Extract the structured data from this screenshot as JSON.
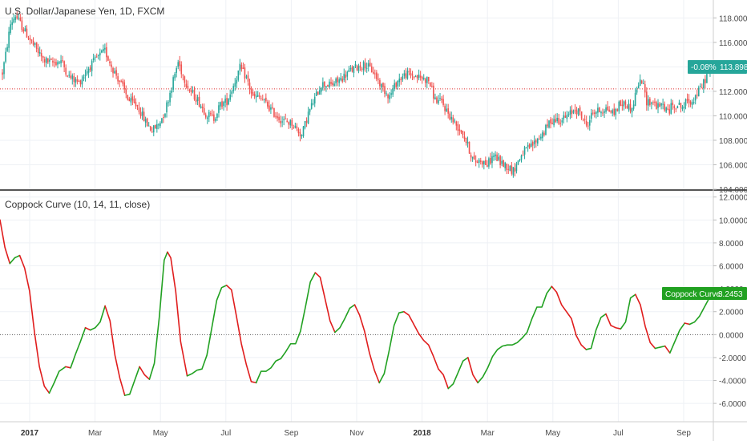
{
  "chart_data": [
    {
      "type": "candlestick",
      "title": "U.S. Dollar/Japanese Yen, 1D, FXCM",
      "yticks": [
        "104.000",
        "106.000",
        "108.000",
        "110.000",
        "112.000",
        "114.000",
        "116.000",
        "118.000"
      ],
      "ylim": [
        104,
        119.2
      ],
      "reference_line": 112.2,
      "last": {
        "change": "-0.08%",
        "price": "113.898"
      },
      "trend_anchors": [
        [
          0,
          113.5
        ],
        [
          2,
          115
        ],
        [
          5,
          117.5
        ],
        [
          8,
          118.2
        ],
        [
          12,
          117.3
        ],
        [
          18,
          116
        ],
        [
          25,
          114.6
        ],
        [
          30,
          114.3
        ],
        [
          36,
          114.5
        ],
        [
          41,
          113.2
        ],
        [
          47,
          112.7
        ],
        [
          53,
          113.9
        ],
        [
          58,
          114.7
        ],
        [
          63,
          115.3
        ],
        [
          68,
          113.8
        ],
        [
          73,
          112.6
        ],
        [
          78,
          111.2
        ],
        [
          83,
          110.8
        ],
        [
          88,
          109.5
        ],
        [
          92,
          108.8
        ],
        [
          96,
          109.3
        ],
        [
          100,
          110.4
        ],
        [
          104,
          112.4
        ],
        [
          108,
          114.4
        ],
        [
          111,
          113.3
        ],
        [
          115,
          112.1
        ],
        [
          120,
          111.3
        ],
        [
          125,
          110.2
        ],
        [
          130,
          109.8
        ],
        [
          134,
          110.9
        ],
        [
          138,
          111.2
        ],
        [
          142,
          112.5
        ],
        [
          146,
          113.9
        ],
        [
          150,
          113.1
        ],
        [
          154,
          111.5
        ],
        [
          158,
          111.5
        ],
        [
          162,
          111.0
        ],
        [
          167,
          110.2
        ],
        [
          172,
          109.6
        ],
        [
          178,
          109.4
        ],
        [
          184,
          108.4
        ],
        [
          188,
          110.2
        ],
        [
          192,
          111.4
        ],
        [
          196,
          112.6
        ],
        [
          202,
          112.5
        ],
        [
          208,
          113.0
        ],
        [
          213,
          113.6
        ],
        [
          218,
          114.0
        ],
        [
          223,
          114.2
        ],
        [
          228,
          113.6
        ],
        [
          233,
          112.4
        ],
        [
          238,
          111.6
        ],
        [
          243,
          112.9
        ],
        [
          248,
          113.4
        ],
        [
          252,
          113.3
        ],
        [
          257,
          113.1
        ],
        [
          262,
          112.9
        ],
        [
          266,
          111.3
        ],
        [
          270,
          111.1
        ],
        [
          274,
          110.2
        ],
        [
          278,
          109.4
        ],
        [
          283,
          108.6
        ],
        [
          287,
          107.2
        ],
        [
          290,
          106.2
        ],
        [
          294,
          106.4
        ],
        [
          298,
          106.0
        ],
        [
          302,
          106.8
        ],
        [
          306,
          106.2
        ],
        [
          310,
          105.9
        ],
        [
          314,
          105.5
        ],
        [
          317,
          106.3
        ],
        [
          320,
          107.0
        ],
        [
          325,
          107.5
        ],
        [
          329,
          108.1
        ],
        [
          333,
          108.7
        ],
        [
          337,
          109.6
        ],
        [
          340,
          109.7
        ],
        [
          344,
          109.7
        ],
        [
          348,
          110.0
        ],
        [
          352,
          110.6
        ],
        [
          355,
          110.2
        ],
        [
          359,
          109.2
        ],
        [
          363,
          110.3
        ],
        [
          367,
          110.4
        ],
        [
          371,
          110.6
        ],
        [
          376,
          110.2
        ],
        [
          379,
          110.9
        ],
        [
          383,
          111.0
        ],
        [
          387,
          110.5
        ],
        [
          390,
          112.3
        ],
        [
          393,
          112.9
        ],
        [
          396,
          111.2
        ],
        [
          400,
          111.1
        ],
        [
          403,
          110.7
        ],
        [
          406,
          110.9
        ],
        [
          409,
          110.3
        ],
        [
          412,
          110.9
        ],
        [
          415,
          110.9
        ],
        [
          418,
          110.7
        ],
        [
          421,
          111.2
        ],
        [
          424,
          111.2
        ],
        [
          427,
          111.8
        ],
        [
          430,
          112.4
        ],
        [
          433,
          113.3
        ],
        [
          436,
          113.9
        ]
      ]
    },
    {
      "type": "line",
      "title": "Coppock Curve (10, 14, 11, close)",
      "yticks": [
        "-6.0000",
        "-4.0000",
        "-2.0000",
        "0.0000",
        "2.0000",
        "4.0000",
        "6.0000",
        "8.0000",
        "10.0000",
        "12.0000"
      ],
      "ylim": [
        -7.6,
        12.4
      ],
      "last": {
        "label": "Coppock Curve",
        "value": "3.2453"
      },
      "colors": {
        "rising": "#21a121",
        "falling": "#e01d1d"
      },
      "series": [
        {
          "anchors": [
            [
              0,
              10
            ],
            [
              3,
              7.6
            ],
            [
              6,
              6.2
            ],
            [
              9,
              6.7
            ],
            [
              12,
              6.9
            ],
            [
              15,
              5.8
            ],
            [
              18,
              3.8
            ],
            [
              21,
              0.2
            ],
            [
              24,
              -2.8
            ],
            [
              27,
              -4.5
            ],
            [
              30,
              -5.1
            ],
            [
              33,
              -4.2
            ],
            [
              36,
              -3.2
            ],
            [
              40,
              -2.8
            ],
            [
              43,
              -2.9
            ],
            [
              46,
              -1.7
            ],
            [
              49,
              -0.6
            ],
            [
              52,
              0.6
            ],
            [
              55,
              0.4
            ],
            [
              58,
              0.6
            ],
            [
              61,
              1.1
            ],
            [
              64,
              2.5
            ],
            [
              67,
              1.2
            ],
            [
              70,
              -1.8
            ],
            [
              73,
              -3.8
            ],
            [
              76,
              -5.3
            ],
            [
              79,
              -5.2
            ],
            [
              82,
              -4.0
            ],
            [
              85,
              -2.8
            ],
            [
              88,
              -3.5
            ],
            [
              91,
              -3.9
            ],
            [
              94,
              -2.5
            ],
            [
              97,
              1.5
            ],
            [
              100,
              6.5
            ],
            [
              102,
              7.2
            ],
            [
              104,
              6.7
            ],
            [
              107,
              3.8
            ],
            [
              110,
              -0.6
            ],
            [
              114,
              -3.6
            ],
            [
              117,
              -3.4
            ],
            [
              120,
              -3.1
            ],
            [
              123,
              -3.0
            ],
            [
              126,
              -1.8
            ],
            [
              129,
              0.6
            ],
            [
              132,
              3.0
            ],
            [
              135,
              4.1
            ],
            [
              138,
              4.3
            ],
            [
              141,
              3.9
            ],
            [
              144,
              1.6
            ],
            [
              147,
              -0.8
            ],
            [
              150,
              -2.6
            ],
            [
              153,
              -4.1
            ],
            [
              156,
              -4.2
            ],
            [
              159,
              -3.2
            ],
            [
              162,
              -3.2
            ],
            [
              165,
              -2.9
            ],
            [
              168,
              -2.3
            ],
            [
              171,
              -2.1
            ],
            [
              174,
              -1.5
            ],
            [
              177,
              -0.8
            ],
            [
              180,
              -0.8
            ],
            [
              183,
              0.3
            ],
            [
              186,
              2.4
            ],
            [
              189,
              4.6
            ],
            [
              192,
              5.4
            ],
            [
              195,
              5.0
            ],
            [
              198,
              3.1
            ],
            [
              201,
              1.2
            ],
            [
              204,
              0.2
            ],
            [
              207,
              0.6
            ],
            [
              210,
              1.4
            ],
            [
              213,
              2.3
            ],
            [
              216,
              2.6
            ],
            [
              219,
              1.7
            ],
            [
              222,
              0.3
            ],
            [
              225,
              -1.6
            ],
            [
              228,
              -3.1
            ],
            [
              231,
              -4.2
            ],
            [
              234,
              -3.4
            ],
            [
              237,
              -1.4
            ],
            [
              240,
              0.8
            ],
            [
              243,
              1.9
            ],
            [
              246,
              2.0
            ],
            [
              249,
              1.7
            ],
            [
              252,
              0.9
            ],
            [
              255,
              0.1
            ],
            [
              258,
              -0.5
            ],
            [
              261,
              -0.9
            ],
            [
              264,
              -1.9
            ],
            [
              267,
              -3.0
            ],
            [
              270,
              -3.5
            ],
            [
              273,
              -4.7
            ],
            [
              276,
              -4.3
            ],
            [
              279,
              -3.3
            ],
            [
              282,
              -2.3
            ],
            [
              285,
              -2.0
            ],
            [
              288,
              -3.5
            ],
            [
              291,
              -4.2
            ],
            [
              294,
              -3.7
            ],
            [
              297,
              -2.9
            ],
            [
              300,
              -1.9
            ],
            [
              303,
              -1.3
            ],
            [
              306,
              -1.0
            ],
            [
              309,
              -0.9
            ],
            [
              312,
              -0.9
            ],
            [
              315,
              -0.7
            ],
            [
              318,
              -0.3
            ],
            [
              321,
              0.2
            ],
            [
              324,
              1.4
            ],
            [
              327,
              2.4
            ],
            [
              330,
              2.4
            ],
            [
              333,
              3.6
            ],
            [
              336,
              4.2
            ],
            [
              339,
              3.7
            ],
            [
              342,
              2.6
            ],
            [
              345,
              2.0
            ],
            [
              348,
              1.4
            ],
            [
              351,
              -0.1
            ],
            [
              354,
              -0.9
            ],
            [
              357,
              -1.3
            ],
            [
              360,
              -1.2
            ],
            [
              363,
              0.4
            ],
            [
              366,
              1.5
            ],
            [
              369,
              1.8
            ],
            [
              372,
              0.8
            ],
            [
              375,
              0.6
            ],
            [
              378,
              0.5
            ],
            [
              381,
              1.1
            ],
            [
              384,
              3.2
            ],
            [
              387,
              3.5
            ],
            [
              390,
              2.6
            ],
            [
              393,
              0.7
            ],
            [
              396,
              -0.7
            ],
            [
              399,
              -1.2
            ],
            [
              402,
              -1.1
            ],
            [
              405,
              -1.0
            ],
            [
              408,
              -1.6
            ],
            [
              411,
              -0.6
            ],
            [
              414,
              0.4
            ],
            [
              417,
              1.0
            ],
            [
              420,
              0.9
            ],
            [
              423,
              1.1
            ],
            [
              426,
              1.6
            ],
            [
              429,
              2.4
            ],
            [
              432,
              3.2
            ]
          ]
        }
      ]
    }
  ],
  "xaxis": {
    "ticks": [
      {
        "label": "2017",
        "bold": true
      },
      {
        "label": "Mar",
        "bold": false
      },
      {
        "label": "May",
        "bold": false
      },
      {
        "label": "Jul",
        "bold": false
      },
      {
        "label": "Sep",
        "bold": false
      },
      {
        "label": "Nov",
        "bold": false
      },
      {
        "label": "2018",
        "bold": true
      },
      {
        "label": "Mar",
        "bold": false
      },
      {
        "label": "May",
        "bold": false
      },
      {
        "label": "Jul",
        "bold": false
      },
      {
        "label": "Sep",
        "bold": false
      }
    ]
  }
}
